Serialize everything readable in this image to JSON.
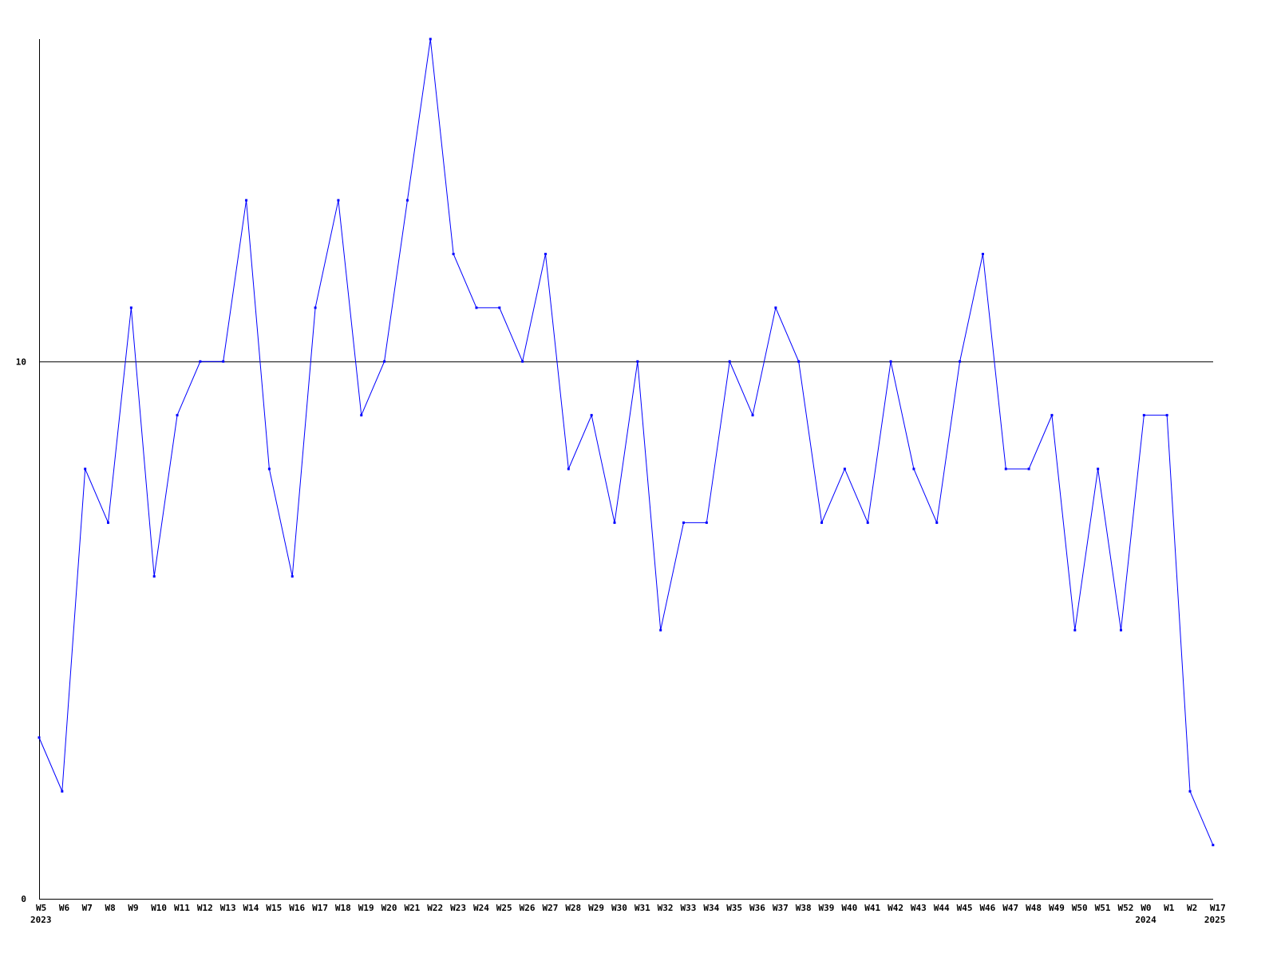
{
  "chart_data": {
    "type": "line",
    "title": "",
    "xlabel": "",
    "ylabel": "",
    "ylim": [
      0,
      16
    ],
    "y_ticks": [
      0,
      10
    ],
    "reference_line": 10,
    "grid": false,
    "line_color": "#0000ff",
    "axis_color": "#000000",
    "categories": [
      "W5",
      "W6",
      "W7",
      "W8",
      "W9",
      "W10",
      "W11",
      "W12",
      "W13",
      "W14",
      "W15",
      "W16",
      "W17",
      "W18",
      "W19",
      "W20",
      "W21",
      "W22",
      "W23",
      "W24",
      "W25",
      "W26",
      "W27",
      "W28",
      "W29",
      "W30",
      "W31",
      "W32",
      "W33",
      "W34",
      "W35",
      "W36",
      "W37",
      "W38",
      "W39",
      "W40",
      "W41",
      "W42",
      "W43",
      "W44",
      "W45",
      "W46",
      "W47",
      "W48",
      "W49",
      "W50",
      "W51",
      "W52",
      "W0",
      "W1",
      "W2",
      "W17"
    ],
    "year_labels": [
      {
        "category_index": 0,
        "label": "2023"
      },
      {
        "category_index": 48,
        "label": "2024"
      },
      {
        "category_index": 51,
        "label": "2025"
      }
    ],
    "values": [
      3,
      2,
      8,
      7,
      11,
      6,
      9,
      10,
      10,
      13,
      8,
      6,
      11,
      13,
      9,
      10,
      13,
      16,
      12,
      11,
      11,
      10,
      12,
      8,
      9,
      7,
      10,
      5,
      7,
      7,
      10,
      9,
      11,
      10,
      7,
      8,
      7,
      10,
      8,
      7,
      10,
      12,
      8,
      8,
      9,
      5,
      8,
      5,
      9,
      9,
      2,
      1
    ]
  }
}
